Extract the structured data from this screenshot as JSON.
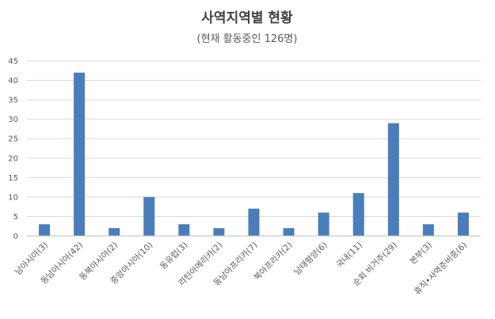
{
  "chart_data": {
    "type": "bar",
    "title": "사역지역별 현황",
    "subtitle": "(현재 활동중인 126명)",
    "xlabel": "",
    "ylabel": "",
    "ylim": [
      0,
      45
    ],
    "yticks": [
      0,
      5,
      10,
      15,
      20,
      25,
      30,
      35,
      40,
      45
    ],
    "grid": true,
    "legend": "none",
    "bar_color": "#4a7ebb",
    "categories": [
      "남아시아(3)",
      "동남아시아(42)",
      "동북아시아(2)",
      "중앙아시아(10)",
      "동유럽(3)",
      "라틴아메리카(2)",
      "동남아프리카(7)",
      "북아프리카(2)",
      "남태평양(6)",
      "국내(11)",
      "순회 비거주(29)",
      "본부(3)",
      "휴직•사역준비중(6)"
    ],
    "values": [
      3,
      42,
      2,
      10,
      3,
      2,
      7,
      2,
      6,
      11,
      29,
      3,
      6
    ]
  }
}
